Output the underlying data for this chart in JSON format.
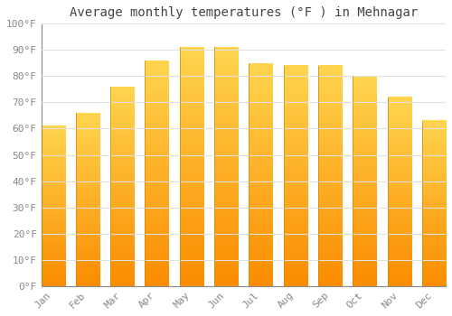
{
  "title": "Average monthly temperatures (°F ) in Mehnagar",
  "months": [
    "Jan",
    "Feb",
    "Mar",
    "Apr",
    "May",
    "Jun",
    "Jul",
    "Aug",
    "Sep",
    "Oct",
    "Nov",
    "Dec"
  ],
  "values": [
    61,
    66,
    76,
    86,
    91,
    91,
    85,
    84,
    84,
    80,
    72,
    63
  ],
  "bar_color_top": "#FFD54F",
  "bar_color_bottom": "#FB8C00",
  "ylim": [
    0,
    100
  ],
  "yticks": [
    0,
    10,
    20,
    30,
    40,
    50,
    60,
    70,
    80,
    90,
    100
  ],
  "ytick_labels": [
    "0°F",
    "10°F",
    "20°F",
    "30°F",
    "40°F",
    "50°F",
    "60°F",
    "70°F",
    "80°F",
    "90°F",
    "100°F"
  ],
  "grid_color": "#e0e0e0",
  "background_color": "#ffffff",
  "title_fontsize": 10,
  "tick_fontsize": 8,
  "font_family": "monospace",
  "tick_color": "#888888",
  "title_color": "#444444",
  "spine_color": "#888888",
  "bar_width": 0.68
}
